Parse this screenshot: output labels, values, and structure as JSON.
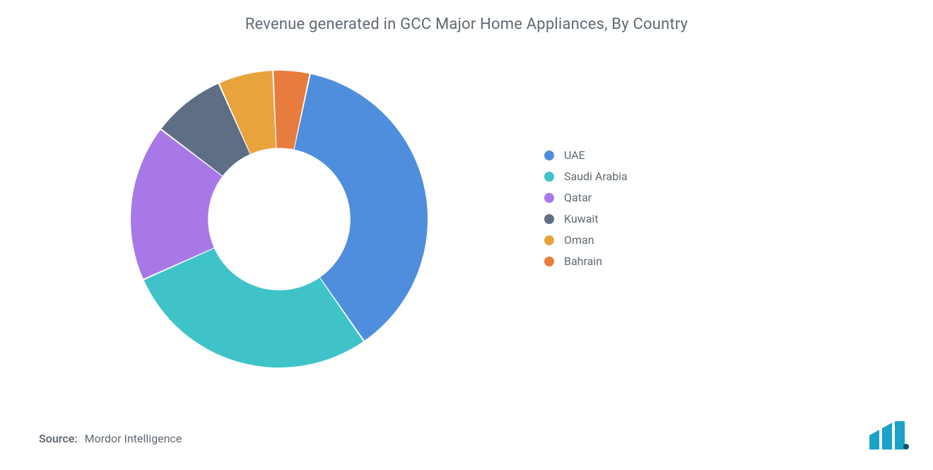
{
  "title": "Revenue generated in GCC Major Home Appliances, By Country",
  "source_label": "Source:",
  "source_value": "Mordor Intelligence",
  "chart": {
    "type": "donut",
    "background_color": "#ffffff",
    "inner_radius_ratio": 0.48,
    "outer_radius": 210,
    "start_angle_deg": -78,
    "gap_deg": 0.6,
    "slices": [
      {
        "label": "UAE",
        "value": 37,
        "color": "#4f8edc"
      },
      {
        "label": "Saudi Arabia",
        "value": 28,
        "color": "#3fc3c9"
      },
      {
        "label": "Qatar",
        "value": 17,
        "color": "#a878e8"
      },
      {
        "label": "Kuwait",
        "value": 8,
        "color": "#5d6e85"
      },
      {
        "label": "Oman",
        "value": 6,
        "color": "#e8a33d"
      },
      {
        "label": "Bahrain",
        "value": 4,
        "color": "#e87b3e"
      }
    ]
  },
  "legend_font_size": 16,
  "title_fontsize": 22,
  "logo_colors": {
    "bar": "#1aa3c6",
    "dot": "#114f66"
  }
}
